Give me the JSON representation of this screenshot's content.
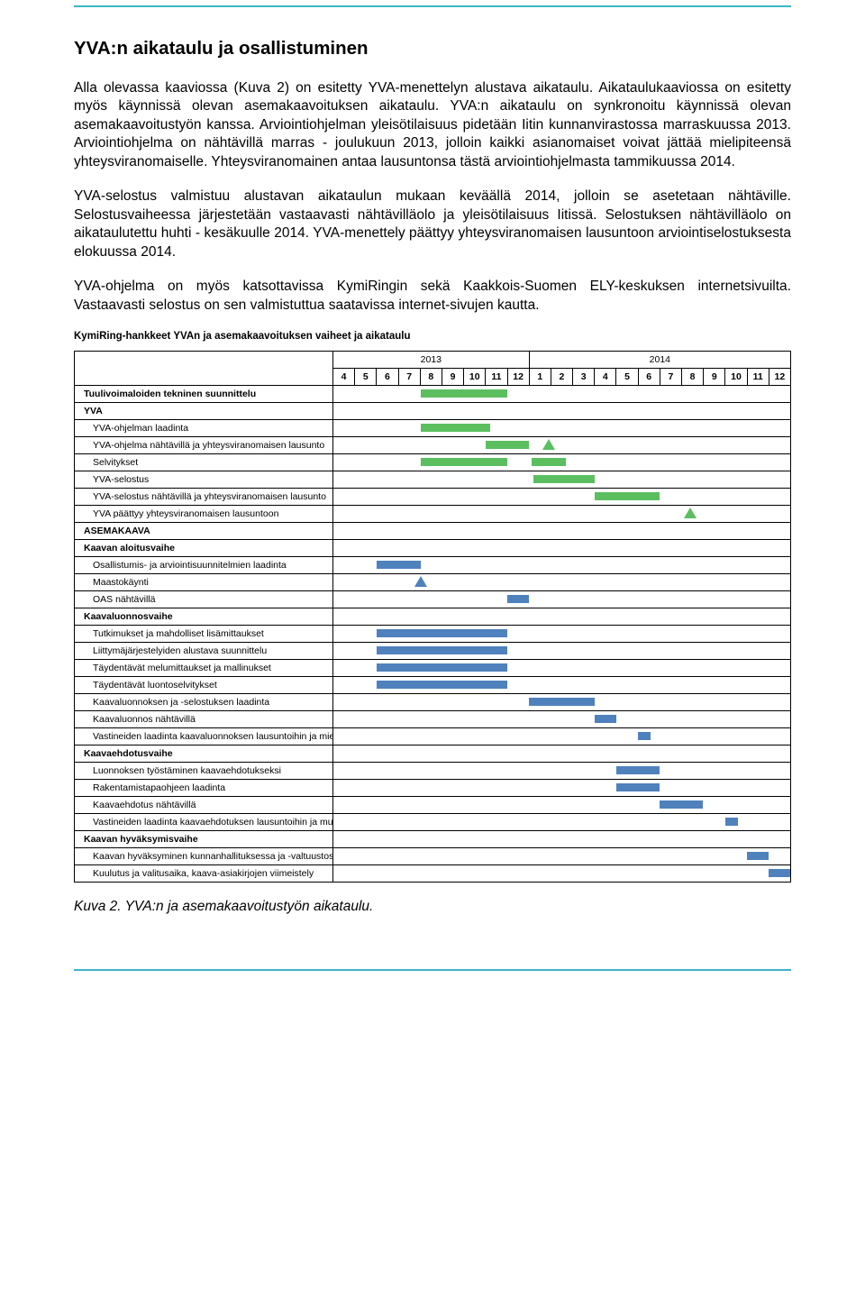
{
  "colors": {
    "rule": "#3db5c9",
    "bar_green": "#5bbf60",
    "bar_blue": "#4f81bd",
    "tri_green": "#5bbf60",
    "tri_blue": "#4f81bd"
  },
  "heading": "YVA:n aikataulu ja osallistuminen",
  "paragraphs": [
    "Alla olevassa kaaviossa (Kuva 2) on esitetty YVA-menettelyn alustava aikataulu. Aikataulukaaviossa on esitetty myös käynnissä olevan asemakaavoituksen aikataulu. YVA:n aikataulu on synkronoitu käynnissä olevan asemakaavoitustyön kanssa. Arviointiohjelman yleisötilaisuus pidetään Iitin kunnanvirastossa marraskuussa 2013. Arviointiohjelma on nähtävillä marras - joulukuun 2013, jolloin kaikki asianomaiset voivat jättää mielipiteensä yhteysviranomaiselle. Yhteysviranomainen antaa lausuntonsa tästä arviointiohjelmasta tammikuussa 2014.",
    "YVA-selostus valmistuu alustavan aikataulun mukaan keväällä 2014, jolloin se asetetaan nähtäville. Selostusvaiheessa järjestetään vastaavasti nähtävilläolo ja yleisötilaisuus Iitissä. Selostuksen nähtävilläolo on aikataulutettu huhti - kesäkuulle 2014. YVA-menettely päättyy yhteysviranomaisen lausuntoon arviointiselostuksesta elokuussa 2014.",
    "YVA-ohjelma on myös katsottavissa KymiRingin sekä Kaakkois-Suomen ELY-keskuksen internetsivuilta. Vastaavasti selostus on sen valmistuttua saatavissa internet-sivujen kautta."
  ],
  "chart": {
    "title": "KymiRing-hankkeet YVAn ja asemakaavoituksen vaiheet ja aikataulu",
    "months": [
      "4",
      "5",
      "6",
      "7",
      "8",
      "9",
      "10",
      "11",
      "12",
      "1",
      "2",
      "3",
      "4",
      "5",
      "6",
      "7",
      "8",
      "9",
      "10",
      "11",
      "12"
    ],
    "years": {
      "y2013": "2013",
      "y2014": "2014",
      "y2013_span": 9,
      "y2014_span": 12
    },
    "cell_w": 24.6,
    "rows": [
      {
        "label": "Tuulivoimaloiden tekninen suunnittelu",
        "section": true,
        "bars": [
          {
            "start": 4,
            "span": 4,
            "color": "bar_green"
          }
        ]
      },
      {
        "label": "YVA",
        "section": true
      },
      {
        "label": "YVA-ohjelman laadinta",
        "indent": true,
        "bars": [
          {
            "start": 4,
            "span": 3.2,
            "color": "bar_green"
          }
        ]
      },
      {
        "label": "YVA-ohjelma nähtävillä ja yhteysviranomaisen lausunto",
        "indent": true,
        "bars": [
          {
            "start": 7,
            "span": 2,
            "color": "bar_green"
          }
        ],
        "tri": [
          {
            "at": 9.9,
            "color": "tri_green"
          }
        ]
      },
      {
        "label": "Selvitykset",
        "indent": true,
        "bars": [
          {
            "start": 4,
            "span": 4,
            "color": "bar_green"
          },
          {
            "start": 9.1,
            "span": 1.6,
            "color": "bar_green"
          }
        ]
      },
      {
        "label": "YVA-selostus",
        "indent": true,
        "bars": [
          {
            "start": 9.2,
            "span": 2.8,
            "color": "bar_green"
          }
        ]
      },
      {
        "label": "YVA-selostus nähtävillä ja yhteysviranomaisen lausunto",
        "indent": true,
        "bars": [
          {
            "start": 12,
            "span": 3,
            "color": "bar_green"
          }
        ]
      },
      {
        "label": "YVA päättyy yhteysviranomaisen lausuntoon",
        "indent": true,
        "tri": [
          {
            "at": 16.4,
            "color": "tri_green"
          }
        ]
      },
      {
        "label": "ASEMAKAAVA",
        "section": true
      },
      {
        "label": "Kaavan aloitusvaihe",
        "section": true
      },
      {
        "label": "Osallistumis- ja arviointisuunnitelmien laadinta",
        "indent": true,
        "bars": [
          {
            "start": 2,
            "span": 2,
            "color": "bar_blue"
          }
        ]
      },
      {
        "label": "Maastokäynti",
        "indent": true,
        "tri": [
          {
            "at": 4.0,
            "color": "tri_blue"
          }
        ]
      },
      {
        "label": "OAS nähtävillä",
        "indent": true,
        "bars": [
          {
            "start": 8,
            "span": 1,
            "color": "bar_blue"
          }
        ]
      },
      {
        "label": "Kaavaluonnosvaihe",
        "section": true
      },
      {
        "label": "Tutkimukset ja mahdolliset lisämittaukset",
        "indent": true,
        "bars": [
          {
            "start": 2,
            "span": 6,
            "color": "bar_blue"
          }
        ]
      },
      {
        "label": "Liittymäjärjestelyiden alustava suunnittelu",
        "indent": true,
        "bars": [
          {
            "start": 2,
            "span": 6,
            "color": "bar_blue"
          }
        ]
      },
      {
        "label": "Täydentävät melumittaukset ja mallinukset",
        "indent": true,
        "bars": [
          {
            "start": 2,
            "span": 6,
            "color": "bar_blue"
          }
        ]
      },
      {
        "label": "Täydentävät luontoselvitykset",
        "indent": true,
        "bars": [
          {
            "start": 2,
            "span": 6,
            "color": "bar_blue"
          }
        ]
      },
      {
        "label": "Kaavaluonnoksen ja -selostuksen laadinta",
        "indent": true,
        "bars": [
          {
            "start": 9,
            "span": 3,
            "color": "bar_blue"
          }
        ]
      },
      {
        "label": "Kaavaluonnos nähtävillä",
        "indent": true,
        "bars": [
          {
            "start": 12,
            "span": 1,
            "color": "bar_blue"
          }
        ]
      },
      {
        "label": "Vastineiden laadinta kaavaluonnoksen lausuntoihin ja mielipiteisiin",
        "indent": true,
        "bars": [
          {
            "start": 14,
            "span": 0.6,
            "color": "bar_blue"
          }
        ]
      },
      {
        "label": "Kaavaehdotusvaihe",
        "section": true
      },
      {
        "label": "Luonnoksen työstäminen kaavaehdotukseksi",
        "indent": true,
        "bars": [
          {
            "start": 13,
            "span": 2,
            "color": "bar_blue"
          }
        ]
      },
      {
        "label": "Rakentamistapaohjeen laadinta",
        "indent": true,
        "bars": [
          {
            "start": 13,
            "span": 2,
            "color": "bar_blue"
          }
        ]
      },
      {
        "label": "Kaavaehdotus nähtävillä",
        "indent": true,
        "bars": [
          {
            "start": 15,
            "span": 2,
            "color": "bar_blue"
          }
        ]
      },
      {
        "label": "Vastineiden laadinta kaavaehdotuksen lausuntoihin ja muistutuksiin",
        "indent": true,
        "bars": [
          {
            "start": 18,
            "span": 0.6,
            "color": "bar_blue"
          }
        ]
      },
      {
        "label": "Kaavan hyväksymisvaihe",
        "section": true
      },
      {
        "label": "Kaavan hyväksyminen kunnanhallituksessa ja -valtuustossa",
        "indent": true,
        "bars": [
          {
            "start": 19,
            "span": 1,
            "color": "bar_blue"
          }
        ]
      },
      {
        "label": "Kuulutus ja valitusaika, kaava-asiakirjojen viimeistely",
        "indent": true,
        "bars": [
          {
            "start": 20,
            "span": 1,
            "color": "bar_blue"
          }
        ]
      }
    ]
  },
  "caption": "Kuva 2. YVA:n ja asemakaavoitustyön aikataulu."
}
